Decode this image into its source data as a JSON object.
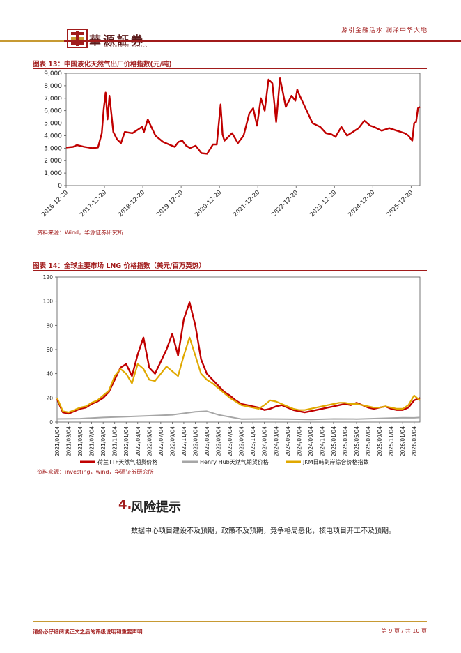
{
  "header": {
    "brand": "華源証券",
    "brand_en": "HUAYUAN SECURITIES",
    "slogan": "源引金融活水 润泽中华大地"
  },
  "figure13": {
    "title": "图表 13：中国液化天然气出厂价格指数(元/吨)",
    "source": "资料来源：Wind，华源证券研究所"
  },
  "figure14": {
    "title": "图表 14：全球主要市场 LNG 价格指数（美元/百万英热）",
    "source": "资料来源：investing，wind，华源证券研究所"
  },
  "section": {
    "number": "4.",
    "title": "风险提示",
    "body": "数据中心项目建设不及预期，政策不及预期，竞争格局恶化，核电项目开工不及预期。"
  },
  "footer": {
    "disclaimer": "请务必仔细阅读正文之后的评级说明和重要声明",
    "page": "第 9 页 / 共 10 页"
  },
  "colors": {
    "accent": "#a11b1b",
    "gold": "#c79a33",
    "gray": "#a6a6a6",
    "ttf": "#c00000",
    "jkm": "#e0a800"
  },
  "chart_data": [
    {
      "type": "line",
      "title": "图表 13：中国液化天然气出厂价格指数(元/吨)",
      "ylim": [
        0,
        9000
      ],
      "yticks": [
        "0",
        "1,000",
        "2,000",
        "3,000",
        "4,000",
        "5,000",
        "6,000",
        "7,000",
        "8,000",
        "9,000"
      ],
      "xticks": [
        "2016-12-20",
        "2017-12-20",
        "2018-12-20",
        "2019-12-20",
        "2020-12-20",
        "2021-12-20",
        "2022-12-20",
        "2023-12-20",
        "2024-12-20",
        "2025-12-20"
      ],
      "x_range": [
        2016.97,
        2026.2
      ],
      "series": [
        {
          "color": "#c00000",
          "x": [
            2016.97,
            2017.15,
            2017.25,
            2017.45,
            2017.65,
            2017.8,
            2017.9,
            2017.95,
            2018.0,
            2018.05,
            2018.1,
            2018.2,
            2018.3,
            2018.4,
            2018.5,
            2018.7,
            2018.85,
            2018.95,
            2019.0,
            2019.1,
            2019.3,
            2019.5,
            2019.8,
            2019.9,
            2020.0,
            2020.1,
            2020.2,
            2020.35,
            2020.5,
            2020.65,
            2020.8,
            2020.9,
            2021.0,
            2021.05,
            2021.1,
            2021.2,
            2021.3,
            2021.45,
            2021.6,
            2021.75,
            2021.85,
            2021.95,
            2022.05,
            2022.15,
            2022.25,
            2022.35,
            2022.45,
            2022.55,
            2022.7,
            2022.85,
            2022.95,
            2023.0,
            2023.05,
            2023.2,
            2023.4,
            2023.6,
            2023.75,
            2023.9,
            2024.0,
            2024.15,
            2024.3,
            2024.45,
            2024.6,
            2024.75,
            2024.9,
            2025.0,
            2025.2,
            2025.4,
            2025.6,
            2025.8,
            2025.9,
            2026.0,
            2026.05,
            2026.1,
            2026.15,
            2026.2
          ],
          "values": [
            3050,
            3100,
            3250,
            3100,
            3000,
            3050,
            4200,
            6100,
            7450,
            5300,
            7200,
            4300,
            3700,
            3400,
            4300,
            4200,
            4500,
            4700,
            4300,
            5300,
            4000,
            3500,
            3100,
            3500,
            3600,
            3200,
            3000,
            3200,
            2600,
            2550,
            3300,
            3300,
            6500,
            4100,
            3600,
            3900,
            4200,
            3400,
            4000,
            5800,
            6200,
            4800,
            7000,
            6000,
            8500,
            8200,
            5100,
            8600,
            6300,
            7200,
            6800,
            7700,
            7300,
            6300,
            5000,
            4700,
            4200,
            4100,
            3900,
            4700,
            4000,
            4300,
            4600,
            5200,
            4800,
            4700,
            4400,
            4600,
            4400,
            4200,
            4000,
            3600,
            5000,
            5100,
            6200,
            6300
          ]
        }
      ]
    },
    {
      "type": "line",
      "title": "图表 14：全球主要市场 LNG 价格指数（美元/百万英热）",
      "ylim": [
        0,
        120
      ],
      "yticks": [
        "0",
        "20",
        "40",
        "60",
        "80",
        "100",
        "120"
      ],
      "xticks": [
        "2021/01/04",
        "2021/03/04",
        "2021/05/04",
        "2021/07/04",
        "2021/09/04",
        "2021/11/04",
        "2022/01/04",
        "2022/03/04",
        "2022/05/04",
        "2022/07/04",
        "2022/09/04",
        "2022/11/04",
        "2023/01/04",
        "2023/03/04",
        "2023/05/04",
        "2023/07/04",
        "2023/09/04",
        "2023/11/04",
        "2024/01/04",
        "2024/03/04",
        "2024/05/04",
        "2024/07/04",
        "2024/09/04",
        "2024/11/04",
        "2025/01/04",
        "2025/03/04",
        "2025/05/04",
        "2025/07/04",
        "2025/09/04",
        "2025/11/04",
        "2026/01/04",
        "2026/03/04"
      ],
      "x_range": [
        0,
        63
      ],
      "series": [
        {
          "name": "荷兰TTF天然气期货价格",
          "color": "#c00000",
          "x": [
            0,
            1,
            2,
            3,
            4,
            5,
            6,
            7,
            8,
            9,
            10,
            11,
            12,
            13,
            14,
            15,
            16,
            17,
            18,
            19,
            20,
            21,
            22,
            23,
            24,
            25,
            26,
            27,
            28,
            29,
            30,
            31,
            32,
            33,
            34,
            35,
            36,
            37,
            38,
            39,
            40,
            41,
            42,
            43,
            44,
            45,
            46,
            47,
            48,
            49,
            50,
            51,
            52,
            53,
            54,
            55,
            56,
            57,
            58,
            59,
            60,
            61,
            62,
            63
          ],
          "values": [
            19,
            8,
            7,
            9,
            11,
            12,
            15,
            17,
            20,
            25,
            35,
            45,
            48,
            38,
            56,
            70,
            45,
            40,
            50,
            60,
            73,
            55,
            85,
            99,
            80,
            52,
            40,
            35,
            30,
            25,
            22,
            18,
            15,
            14,
            13,
            12,
            10,
            11,
            13,
            14,
            12,
            10,
            9,
            8,
            9,
            10,
            11,
            12,
            13,
            14,
            15,
            14,
            16,
            14,
            12,
            11,
            12,
            13,
            11,
            10,
            10,
            12,
            18,
            20
          ]
        },
        {
          "name": "Henry Hub天然气期货价格",
          "color": "#a6a6a6",
          "x": [
            0,
            4,
            8,
            12,
            16,
            20,
            24,
            26,
            28,
            32,
            36,
            40,
            44,
            48,
            52,
            56,
            60,
            62,
            63
          ],
          "values": [
            2.6,
            2.8,
            3.8,
            4.5,
            5.2,
            6.0,
            8.5,
            9.0,
            6.0,
            2.5,
            2.6,
            2.5,
            2.2,
            2.6,
            2.5,
            3.0,
            3.6,
            3.5,
            3.8
          ]
        },
        {
          "name": "JKM日韩到岸综合价格指数",
          "color": "#e0a800",
          "x": [
            0,
            1,
            2,
            3,
            4,
            5,
            6,
            7,
            8,
            9,
            10,
            11,
            12,
            13,
            14,
            15,
            16,
            17,
            18,
            19,
            20,
            21,
            22,
            23,
            24,
            25,
            26,
            27,
            28,
            29,
            30,
            31,
            32,
            33,
            34,
            35,
            36,
            37,
            38,
            39,
            40,
            41,
            42,
            43,
            44,
            45,
            46,
            47,
            48,
            49,
            50,
            51,
            52,
            53,
            54,
            55,
            56,
            57,
            58,
            59,
            60,
            61,
            62,
            63
          ],
          "values": [
            20,
            9,
            8,
            10,
            12,
            13,
            16,
            18,
            22,
            26,
            38,
            44,
            40,
            32,
            48,
            44,
            35,
            34,
            40,
            46,
            42,
            38,
            55,
            70,
            55,
            40,
            35,
            32,
            28,
            24,
            20,
            17,
            14,
            13,
            12,
            11,
            14,
            18,
            17,
            15,
            13,
            11,
            10,
            10,
            11,
            12,
            13,
            14,
            15,
            16,
            16,
            15,
            15,
            14,
            13,
            12,
            12,
            13,
            12,
            11,
            11,
            14,
            22,
            18
          ]
        }
      ]
    }
  ]
}
